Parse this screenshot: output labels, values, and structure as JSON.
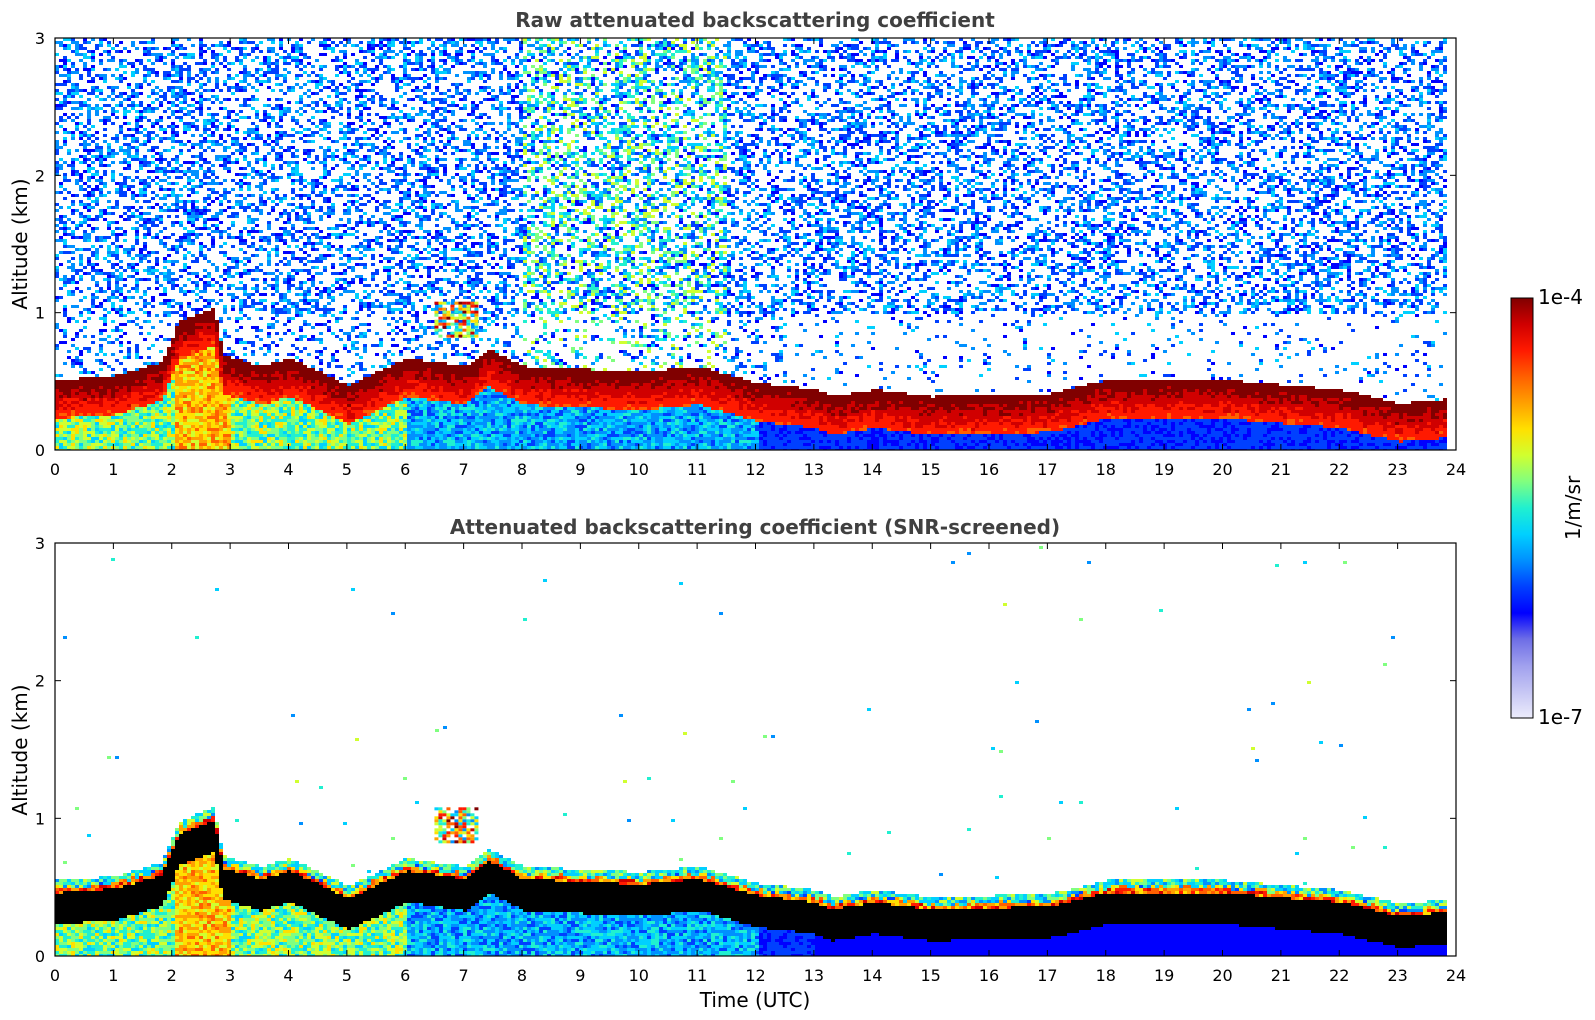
{
  "chart_data": [
    {
      "type": "heatmap",
      "title": "Raw attenuated backscattering coefficient",
      "xlabel": "",
      "ylabel": "Altitude (km)",
      "xlim": [
        0,
        24
      ],
      "ylim": [
        0,
        3
      ],
      "x_ticks": [
        "0",
        "1",
        "2",
        "3",
        "4",
        "5",
        "6",
        "7",
        "8",
        "9",
        "10",
        "11",
        "12",
        "13",
        "14",
        "15",
        "16",
        "17",
        "18",
        "19",
        "20",
        "21",
        "22",
        "23",
        "24"
      ],
      "y_ticks": [
        "0",
        "1",
        "2",
        "3"
      ],
      "screened": false,
      "data_end_hour": 23.8,
      "layer_top_km": [
        [
          0,
          0.52
        ],
        [
          1,
          0.55
        ],
        [
          1.8,
          0.65
        ],
        [
          2.1,
          0.95
        ],
        [
          2.7,
          1.05
        ],
        [
          2.85,
          0.7
        ],
        [
          3.5,
          0.62
        ],
        [
          4,
          0.68
        ],
        [
          5,
          0.48
        ],
        [
          6,
          0.68
        ],
        [
          7,
          0.62
        ],
        [
          7.4,
          0.75
        ],
        [
          8,
          0.62
        ],
        [
          10,
          0.58
        ],
        [
          11,
          0.62
        ],
        [
          12,
          0.5
        ],
        [
          13,
          0.45
        ],
        [
          13.3,
          0.4
        ],
        [
          14,
          0.45
        ],
        [
          15,
          0.4
        ],
        [
          17,
          0.42
        ],
        [
          18,
          0.52
        ],
        [
          20,
          0.52
        ],
        [
          22,
          0.45
        ],
        [
          23,
          0.35
        ],
        [
          23.8,
          0.38
        ]
      ],
      "elevated_features": [
        {
          "start_h": 6.5,
          "end_h": 7.2,
          "bottom_km": 0.82,
          "top_km": 1.08
        }
      ]
    },
    {
      "type": "heatmap",
      "title": "Attenuated backscattering coefficient (SNR-screened)",
      "xlabel": "Time (UTC)",
      "ylabel": "Altitude (km)",
      "xlim": [
        0,
        24
      ],
      "ylim": [
        0,
        3
      ],
      "x_ticks": [
        "0",
        "1",
        "2",
        "3",
        "4",
        "5",
        "6",
        "7",
        "8",
        "9",
        "10",
        "11",
        "12",
        "13",
        "14",
        "15",
        "16",
        "17",
        "18",
        "19",
        "20",
        "21",
        "22",
        "23",
        "24"
      ],
      "y_ticks": [
        "0",
        "1",
        "2",
        "3"
      ],
      "screened": true,
      "data_end_hour": 23.8,
      "layer_top_km": [
        [
          0,
          0.52
        ],
        [
          1,
          0.55
        ],
        [
          1.8,
          0.65
        ],
        [
          2.1,
          0.95
        ],
        [
          2.7,
          1.05
        ],
        [
          2.85,
          0.7
        ],
        [
          3.5,
          0.62
        ],
        [
          4,
          0.68
        ],
        [
          5,
          0.48
        ],
        [
          6,
          0.68
        ],
        [
          7,
          0.62
        ],
        [
          7.4,
          0.75
        ],
        [
          8,
          0.62
        ],
        [
          10,
          0.58
        ],
        [
          11,
          0.62
        ],
        [
          12,
          0.5
        ],
        [
          13,
          0.45
        ],
        [
          13.3,
          0.4
        ],
        [
          14,
          0.45
        ],
        [
          15,
          0.4
        ],
        [
          17,
          0.42
        ],
        [
          18,
          0.52
        ],
        [
          20,
          0.52
        ],
        [
          22,
          0.45
        ],
        [
          23,
          0.35
        ],
        [
          23.8,
          0.38
        ]
      ],
      "elevated_features": [
        {
          "start_h": 6.5,
          "end_h": 7.2,
          "bottom_km": 0.82,
          "top_km": 1.08
        }
      ]
    }
  ],
  "colorbar": {
    "label": "1/m/sr",
    "max_label": "1e-4",
    "min_label": "1e-7",
    "scale": "log",
    "colors": [
      "#ececfb",
      "#c6c6f4",
      "#a0a0ee",
      "#6e6ee6",
      "#0000ff",
      "#0040ff",
      "#0090ff",
      "#00d0ff",
      "#20f0d0",
      "#80ff80",
      "#d0ff30",
      "#ffe000",
      "#ffa000",
      "#ff6000",
      "#ff1a00",
      "#d00000",
      "#800000"
    ]
  }
}
